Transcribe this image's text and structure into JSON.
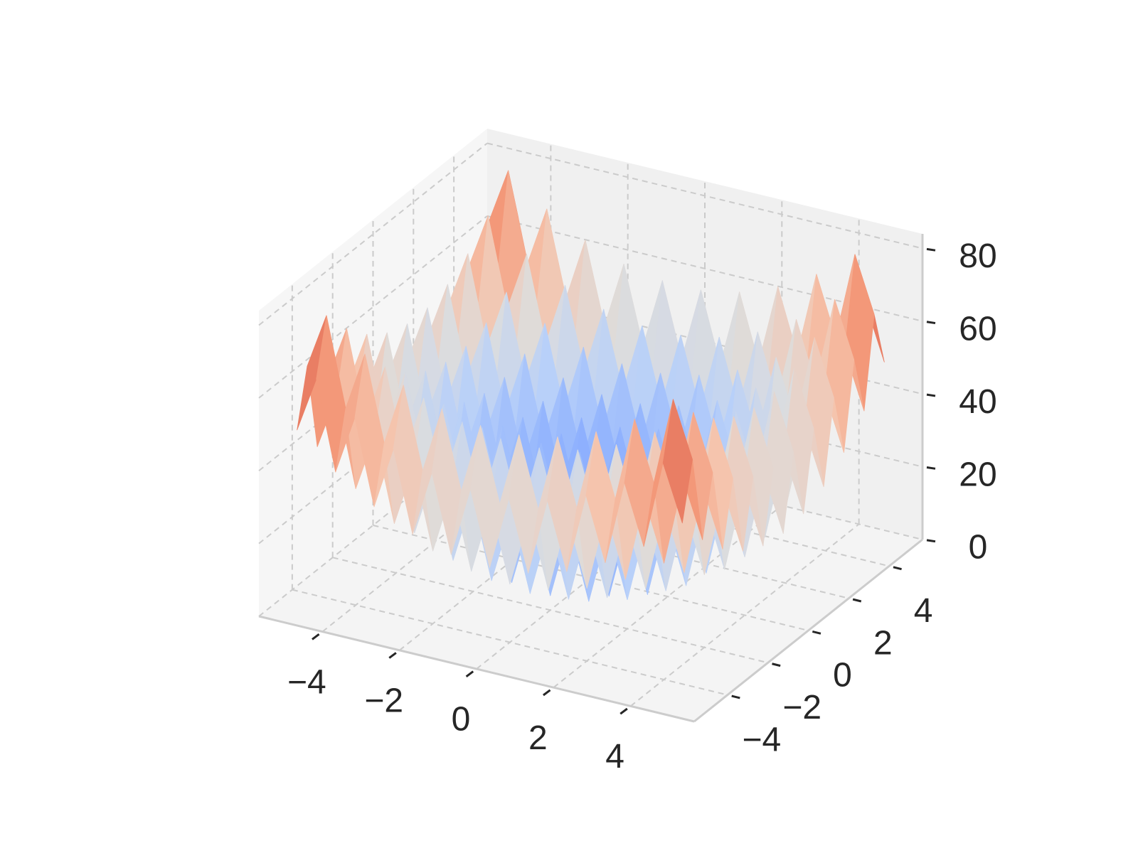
{
  "chart_data": {
    "type": "surface3d",
    "colormap": "coolwarm",
    "grid": true,
    "x": [
      -5,
      -4.5,
      -4,
      -3.5,
      -3,
      -2.5,
      -2,
      -1.5,
      -1,
      -0.5,
      0,
      0.5,
      1,
      1.5,
      2,
      2.5,
      3,
      3.5,
      4,
      4.5,
      5
    ],
    "y": [
      -5,
      -4.5,
      -4,
      -3.5,
      -3,
      -2.5,
      -2,
      -1.5,
      -1,
      -0.5,
      0,
      0.5,
      1,
      1.5,
      2,
      2.5,
      3,
      3.5,
      4,
      4.5,
      5
    ],
    "z": [
      [
        50,
        65.25,
        41,
        57.25,
        34,
        51.25,
        29,
        47.25,
        26,
        45.25,
        25,
        45.25,
        26,
        47.25,
        29,
        51.25,
        34,
        57.25,
        41,
        65.25,
        50
      ],
      [
        65.25,
        80.5,
        56.25,
        72.5,
        49.25,
        66.5,
        44.25,
        62.5,
        41.25,
        60.5,
        40.25,
        60.5,
        41.25,
        62.5,
        44.25,
        66.5,
        49.25,
        72.5,
        56.25,
        80.5,
        65.25
      ],
      [
        41,
        56.25,
        32,
        48.25,
        25,
        42.25,
        20,
        38.25,
        17,
        36.25,
        16,
        36.25,
        17,
        38.25,
        20,
        42.25,
        25,
        48.25,
        32,
        56.25,
        41
      ],
      [
        57.25,
        72.5,
        48.25,
        64.5,
        41.25,
        58.5,
        36.25,
        54.5,
        33.25,
        52.5,
        32.25,
        52.5,
        33.25,
        54.5,
        36.25,
        58.5,
        41.25,
        64.5,
        48.25,
        72.5,
        57.25
      ],
      [
        34,
        49.25,
        25,
        41.25,
        18,
        35.25,
        13,
        31.25,
        10,
        29.25,
        9,
        29.25,
        10,
        31.25,
        13,
        35.25,
        18,
        41.25,
        25,
        49.25,
        34
      ],
      [
        51.25,
        66.5,
        42.25,
        58.5,
        35.25,
        52.5,
        30.25,
        48.5,
        27.25,
        46.5,
        26.25,
        46.5,
        27.25,
        48.5,
        30.25,
        52.5,
        35.25,
        58.5,
        42.25,
        66.5,
        51.25
      ],
      [
        29,
        44.25,
        20,
        36.25,
        13,
        30.25,
        8,
        26.25,
        5,
        24.25,
        4,
        24.25,
        5,
        26.25,
        8,
        30.25,
        13,
        36.25,
        20,
        44.25,
        29
      ],
      [
        47.25,
        62.5,
        38.25,
        54.5,
        31.25,
        48.5,
        26.25,
        44.5,
        23.25,
        42.5,
        22.25,
        42.5,
        23.25,
        44.5,
        26.25,
        48.5,
        31.25,
        54.5,
        38.25,
        62.5,
        47.25
      ],
      [
        26,
        41.25,
        17,
        33.25,
        10,
        27.25,
        5,
        23.25,
        2,
        21.25,
        1,
        21.25,
        2,
        23.25,
        5,
        27.25,
        10,
        33.25,
        17,
        41.25,
        26
      ],
      [
        45.25,
        60.5,
        36.25,
        52.5,
        29.25,
        46.5,
        24.25,
        42.5,
        21.25,
        40.5,
        20.25,
        40.5,
        21.25,
        42.5,
        24.25,
        46.5,
        29.25,
        52.5,
        36.25,
        60.5,
        45.25
      ],
      [
        25,
        40.25,
        16,
        32.25,
        9,
        26.25,
        4,
        22.25,
        1,
        20.25,
        0,
        20.25,
        1,
        22.25,
        4,
        26.25,
        9,
        32.25,
        16,
        40.25,
        25
      ],
      [
        45.25,
        60.5,
        36.25,
        52.5,
        29.25,
        46.5,
        24.25,
        42.5,
        21.25,
        40.5,
        20.25,
        40.5,
        21.25,
        42.5,
        24.25,
        46.5,
        29.25,
        52.5,
        36.25,
        60.5,
        45.25
      ],
      [
        26,
        41.25,
        17,
        33.25,
        10,
        27.25,
        5,
        23.25,
        2,
        21.25,
        1,
        21.25,
        2,
        23.25,
        5,
        27.25,
        10,
        33.25,
        17,
        41.25,
        26
      ],
      [
        47.25,
        62.5,
        38.25,
        54.5,
        31.25,
        48.5,
        26.25,
        44.5,
        23.25,
        42.5,
        22.25,
        42.5,
        23.25,
        44.5,
        26.25,
        48.5,
        31.25,
        54.5,
        38.25,
        62.5,
        47.25
      ],
      [
        29,
        44.25,
        20,
        36.25,
        13,
        30.25,
        8,
        26.25,
        5,
        24.25,
        4,
        24.25,
        5,
        26.25,
        8,
        30.25,
        13,
        36.25,
        20,
        44.25,
        29
      ],
      [
        51.25,
        66.5,
        42.25,
        58.5,
        35.25,
        52.5,
        30.25,
        48.5,
        27.25,
        46.5,
        26.25,
        46.5,
        27.25,
        48.5,
        30.25,
        52.5,
        35.25,
        58.5,
        42.25,
        66.5,
        51.25
      ],
      [
        34,
        49.25,
        25,
        41.25,
        18,
        35.25,
        13,
        31.25,
        10,
        29.25,
        9,
        29.25,
        10,
        31.25,
        13,
        35.25,
        18,
        41.25,
        25,
        49.25,
        34
      ],
      [
        57.25,
        72.5,
        48.25,
        64.5,
        41.25,
        58.5,
        36.25,
        54.5,
        33.25,
        52.5,
        32.25,
        52.5,
        33.25,
        54.5,
        36.25,
        58.5,
        41.25,
        64.5,
        48.25,
        72.5,
        57.25
      ],
      [
        41,
        56.25,
        32,
        48.25,
        25,
        42.25,
        20,
        38.25,
        17,
        36.25,
        16,
        36.25,
        17,
        38.25,
        20,
        42.25,
        25,
        48.25,
        32,
        56.25,
        41
      ],
      [
        65.25,
        80.5,
        56.25,
        72.5,
        49.25,
        66.5,
        44.25,
        62.5,
        41.25,
        60.5,
        40.25,
        60.5,
        41.25,
        62.5,
        44.25,
        66.5,
        49.25,
        72.5,
        56.25,
        80.5,
        65.25
      ],
      [
        50,
        65.25,
        41,
        57.25,
        34,
        51.25,
        29,
        47.25,
        26,
        45.25,
        25,
        45.25,
        26,
        47.25,
        29,
        51.25,
        34,
        57.25,
        41,
        65.25,
        50
      ]
    ],
    "xlim": [
      -5.65,
      5.65
    ],
    "ylim": [
      -5.65,
      5.65
    ],
    "zlim": [
      0,
      84
    ],
    "xticks": [
      {
        "value": -4,
        "label": "−4"
      },
      {
        "value": -2,
        "label": "−2"
      },
      0,
      2,
      4
    ],
    "yticks": [
      {
        "value": -4,
        "label": "−4"
      },
      {
        "value": -2,
        "label": "−2"
      },
      0,
      2,
      4
    ],
    "zticks": [
      0,
      20,
      40,
      60,
      80
    ]
  }
}
